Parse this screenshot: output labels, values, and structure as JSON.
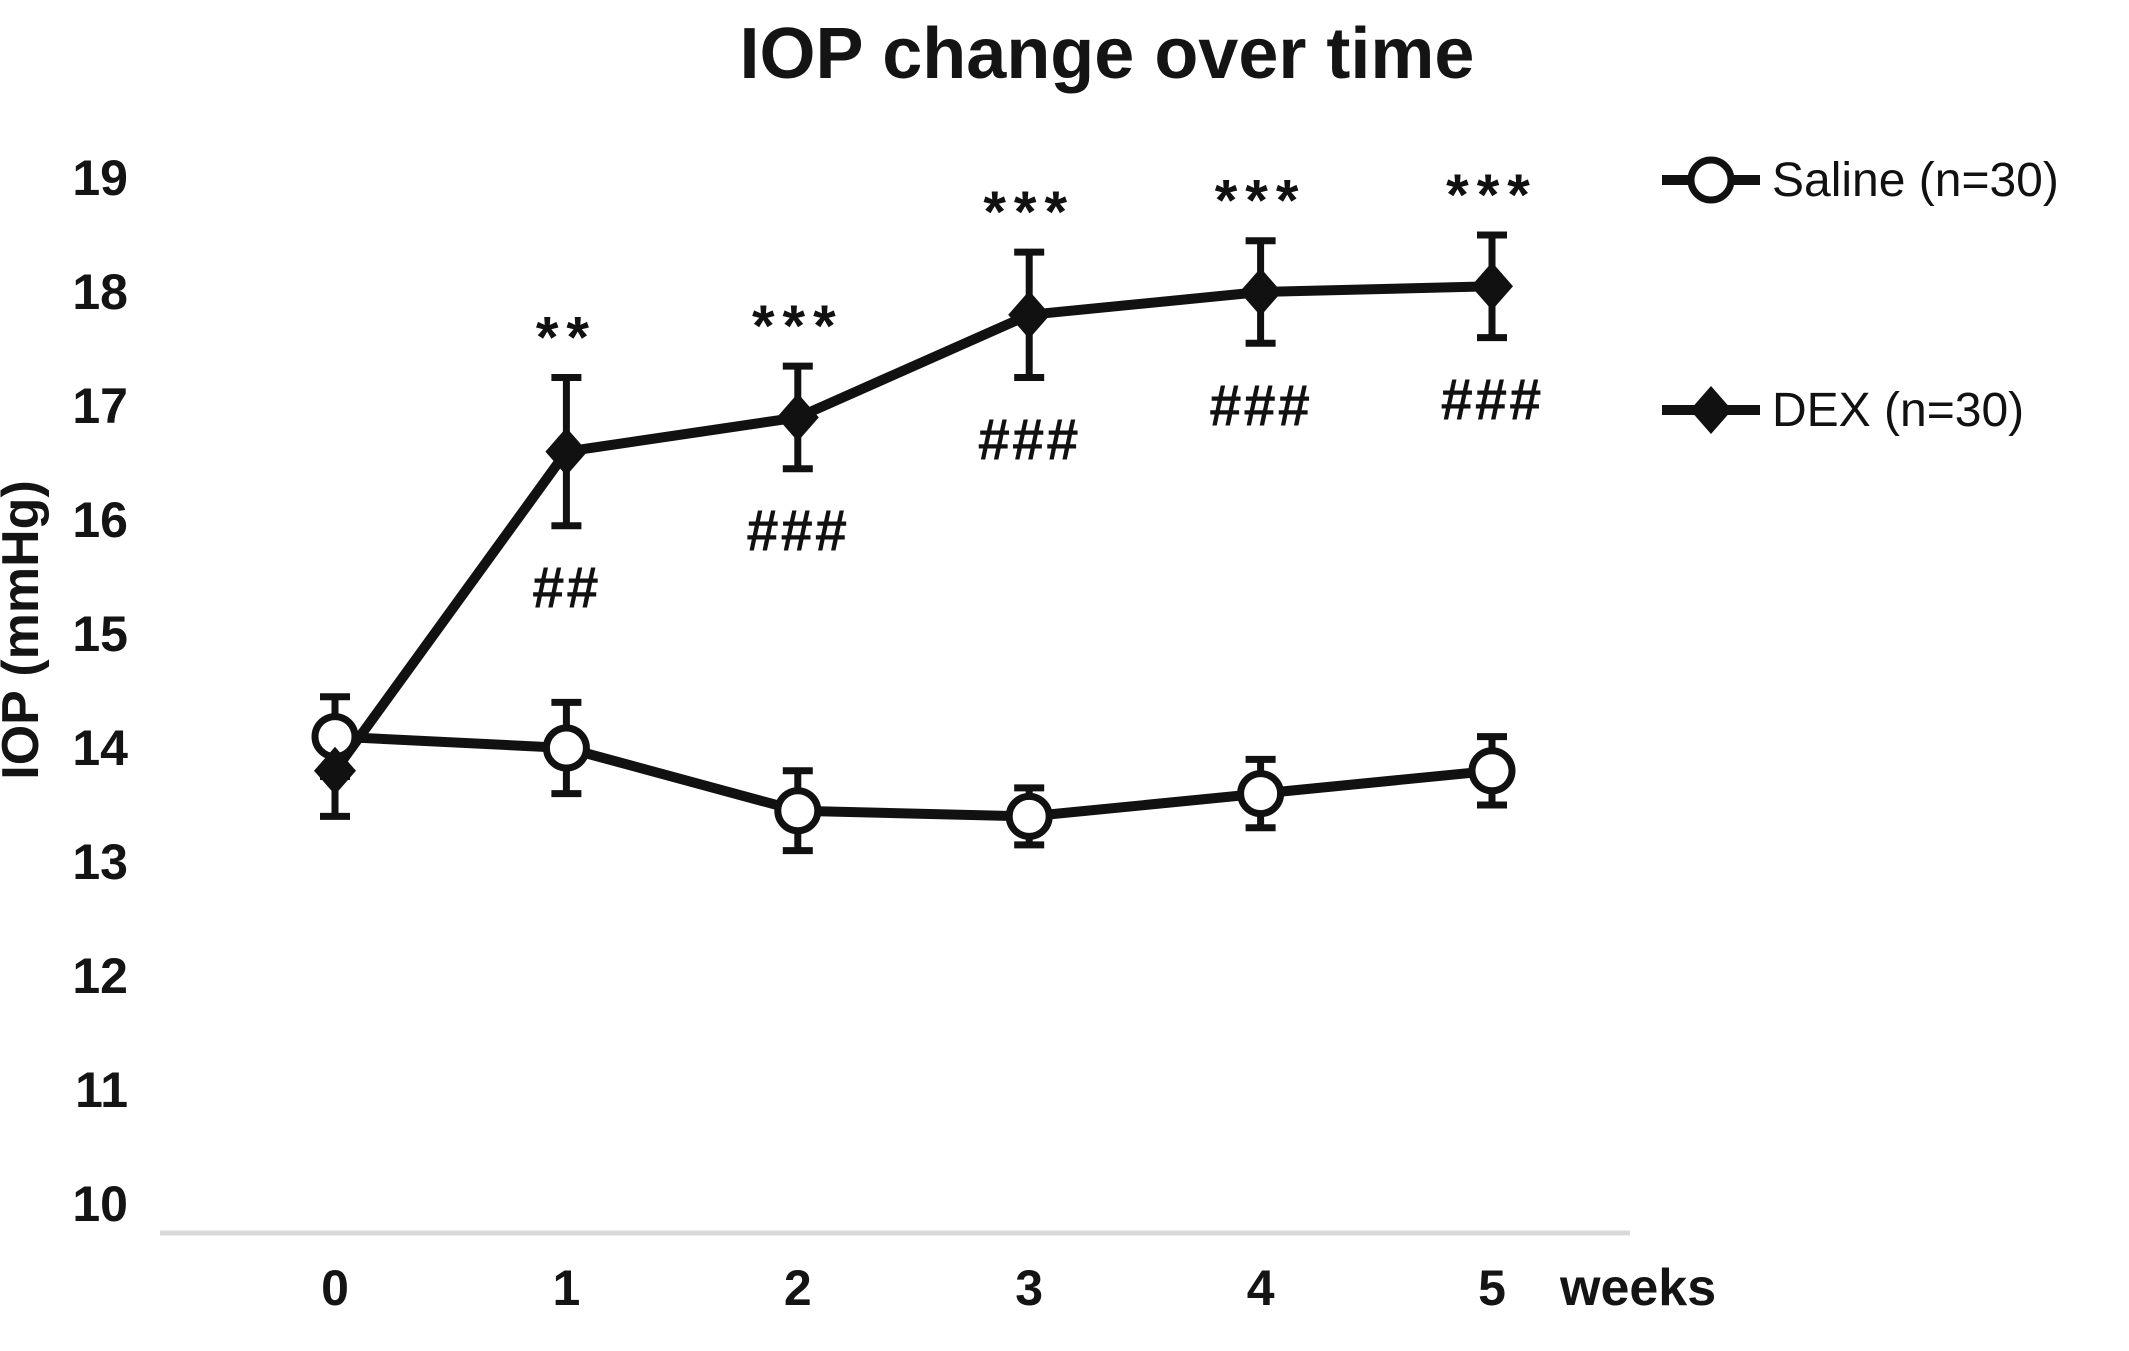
{
  "page": {
    "background": "#ffffff"
  },
  "chart_data": {
    "type": "line",
    "title": "IOP change over time",
    "ylabel": "IOP (mmHg)",
    "xlabel": "weeks",
    "x": [
      0,
      1,
      2,
      3,
      4,
      5
    ],
    "xtick_labels": [
      "0",
      "1",
      "2",
      "3",
      "4",
      "5"
    ],
    "ylim": [
      10,
      19
    ],
    "yticks": [
      10,
      11,
      12,
      13,
      14,
      15,
      16,
      17,
      18,
      19
    ],
    "grid": false,
    "legend_position": "right",
    "axis_line_color": "#d9d9d9",
    "text_color": "#141414",
    "series": [
      {
        "name": "Saline (n=30)",
        "marker": "open-circle",
        "color": "#111111",
        "values": [
          14.1,
          14.0,
          13.45,
          13.4,
          13.6,
          13.8
        ],
        "errors": [
          0.35,
          0.4,
          0.35,
          0.25,
          0.3,
          0.3
        ]
      },
      {
        "name": "DEX (n=30)",
        "marker": "filled-diamond",
        "color": "#111111",
        "values": [
          13.8,
          16.6,
          16.9,
          17.8,
          18.0,
          18.05
        ],
        "errors": [
          0.4,
          0.65,
          0.45,
          0.55,
          0.45,
          0.45
        ]
      }
    ],
    "annotations": {
      "applies_to": "DEX (n=30)",
      "above": [
        "",
        "**",
        "***",
        "***",
        "***",
        "***"
      ],
      "below": [
        "",
        "##",
        "###",
        "###",
        "###",
        "###"
      ]
    }
  }
}
